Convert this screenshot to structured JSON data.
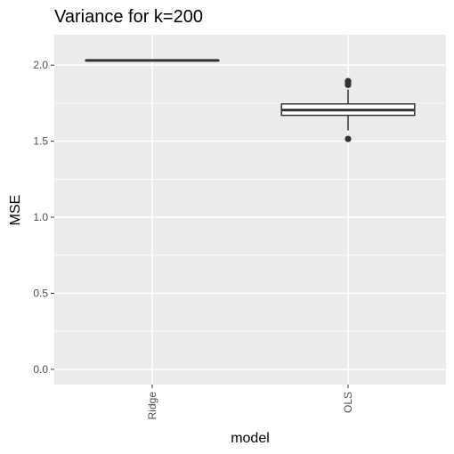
{
  "chart_data": {
    "type": "boxplot",
    "title": "Variance for k=200",
    "xlabel": "model",
    "ylabel": "MSE",
    "categories": [
      "Ridge",
      "OLS"
    ],
    "ylim": [
      -0.1,
      2.2
    ],
    "y_ticks": [
      0.0,
      0.5,
      1.0,
      1.5,
      2.0
    ],
    "y_tick_labels": [
      "0.0",
      "0.5",
      "1.0",
      "1.5",
      "2.0"
    ],
    "grid": true,
    "legend": "none",
    "boxes": [
      {
        "category": "Ridge",
        "whisker_low": 2.027,
        "q1": 2.03,
        "median": 2.031,
        "q3": 2.032,
        "whisker_high": 2.035,
        "outliers": []
      },
      {
        "category": "OLS",
        "whisker_low": 1.57,
        "q1": 1.67,
        "median": 1.705,
        "q3": 1.745,
        "whisker_high": 1.84,
        "outliers": [
          1.515,
          1.87,
          1.885,
          1.895
        ]
      }
    ],
    "colors": {
      "panel_background": "#ebebeb",
      "grid_major": "#ffffff",
      "box_fill": "#ffffff",
      "box_line": "#333333",
      "outlier": "#333333",
      "tick_label": "#4d4d4d",
      "axis_title": "#000000"
    }
  }
}
